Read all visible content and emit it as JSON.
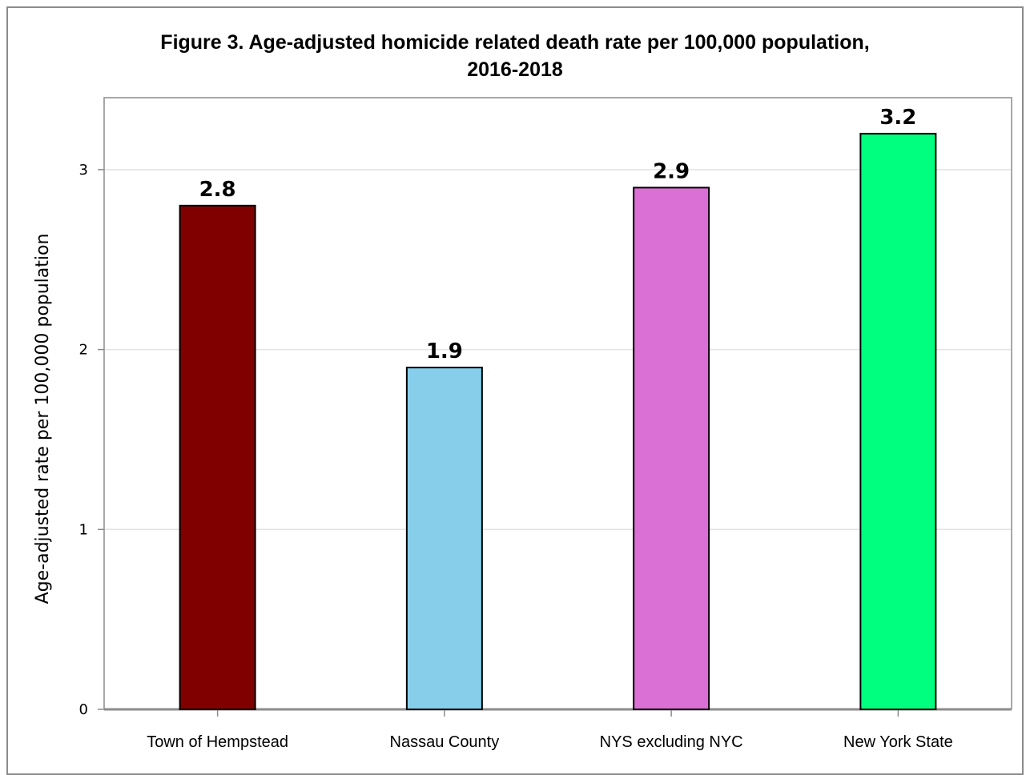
{
  "title_line1": "Figure 3. Age-adjusted homicide related death rate per 100,000 population,",
  "title_line2": "2016-2018",
  "chart_data": {
    "type": "bar",
    "title": "Figure 3. Age-adjusted homicide related death rate per 100,000 population, 2016-2018",
    "ylabel": "Age-adjusted rate per 100,000 population",
    "xlabel": "",
    "ylim": [
      0,
      3.4
    ],
    "yticks": [
      0,
      1,
      2,
      3
    ],
    "grid": true,
    "categories": [
      "Town of Hempstead",
      "Nassau County",
      "NYS excluding NYC",
      "New York State"
    ],
    "values": [
      2.8,
      1.9,
      2.9,
      3.2
    ],
    "data_labels": [
      "2.8",
      "1.9",
      "2.9",
      "3.2"
    ],
    "colors": [
      "#800000",
      "#87ceeb",
      "#da70d6",
      "#00ff7f"
    ]
  }
}
